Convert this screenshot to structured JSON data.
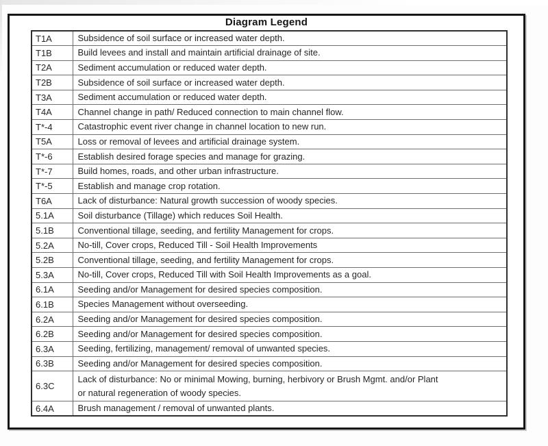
{
  "legend": {
    "title": "Diagram Legend",
    "rows": [
      {
        "code": "T1A",
        "description": "Subsidence of soil surface or increased water depth."
      },
      {
        "code": "T1B",
        "description": "Build levees and install and maintain artificial drainage of site."
      },
      {
        "code": "T2A",
        "description": "Sediment accumulation or reduced water depth."
      },
      {
        "code": "T2B",
        "description": "Subsidence of soil surface or increased water depth."
      },
      {
        "code": "T3A",
        "description": "Sediment accumulation or reduced water depth."
      },
      {
        "code": "T4A",
        "description": "Channel change in path/ Reduced connection to main channel flow."
      },
      {
        "code": "T*-4",
        "description": "Catastrophic event river change in channel location to new run."
      },
      {
        "code": "T5A",
        "description": "Loss or removal of levees and artificial drainage system."
      },
      {
        "code": "T*-6",
        "description": "Establish desired forage species and manage for grazing."
      },
      {
        "code": "T*-7",
        "description": "Build homes, roads, and other urban infrastructure."
      },
      {
        "code": "T*-5",
        "description": "Establish and manage crop rotation."
      },
      {
        "code": "T6A",
        "description": "Lack of disturbance: Natural growth succession of woody species."
      },
      {
        "code": "5.1A",
        "description": "Soil disturbance (Tillage) which reduces Soil Health."
      },
      {
        "code": "5.1B",
        "description": "Conventional tillage, seeding, and fertility Management for crops."
      },
      {
        "code": "5.2A",
        "description": "No-till, Cover crops, Reduced Till - Soil Health Improvements"
      },
      {
        "code": "5.2B",
        "description": "Conventional tillage, seeding, and fertility Management for crops."
      },
      {
        "code": "5.3A",
        "description": "No-till, Cover crops, Reduced Till with Soil Health Improvements as a goal."
      },
      {
        "code": "6.1A",
        "description": "Seeding and/or Management for desired species composition."
      },
      {
        "code": "6.1B",
        "description": "Species Management without overseeding."
      },
      {
        "code": "6.2A",
        "description": "Seeding and/or Management for desired species composition."
      },
      {
        "code": "6.2B",
        "description": "Seeding and/or Management for desired species composition."
      },
      {
        "code": "6.3A",
        "description": "Seeding, fertilizing, management/ removal of unwanted species."
      },
      {
        "code": "6.3B",
        "description": "Seeding and/or Management for desired species composition."
      },
      {
        "code": "6.3C",
        "description": "Lack of disturbance: No or minimal Mowing, burning, herbivory or Brush Mgmt. and/or Plant\nor natural regeneration of woody species."
      },
      {
        "code": "6.4A",
        "description": "Brush management / removal of unwanted plants."
      }
    ]
  },
  "colors": {
    "outer_border": "#161616",
    "table_border": "#2e2e2e",
    "grid_line": "#6f6f6f",
    "text": "#262626",
    "background": "#ffffff"
  }
}
